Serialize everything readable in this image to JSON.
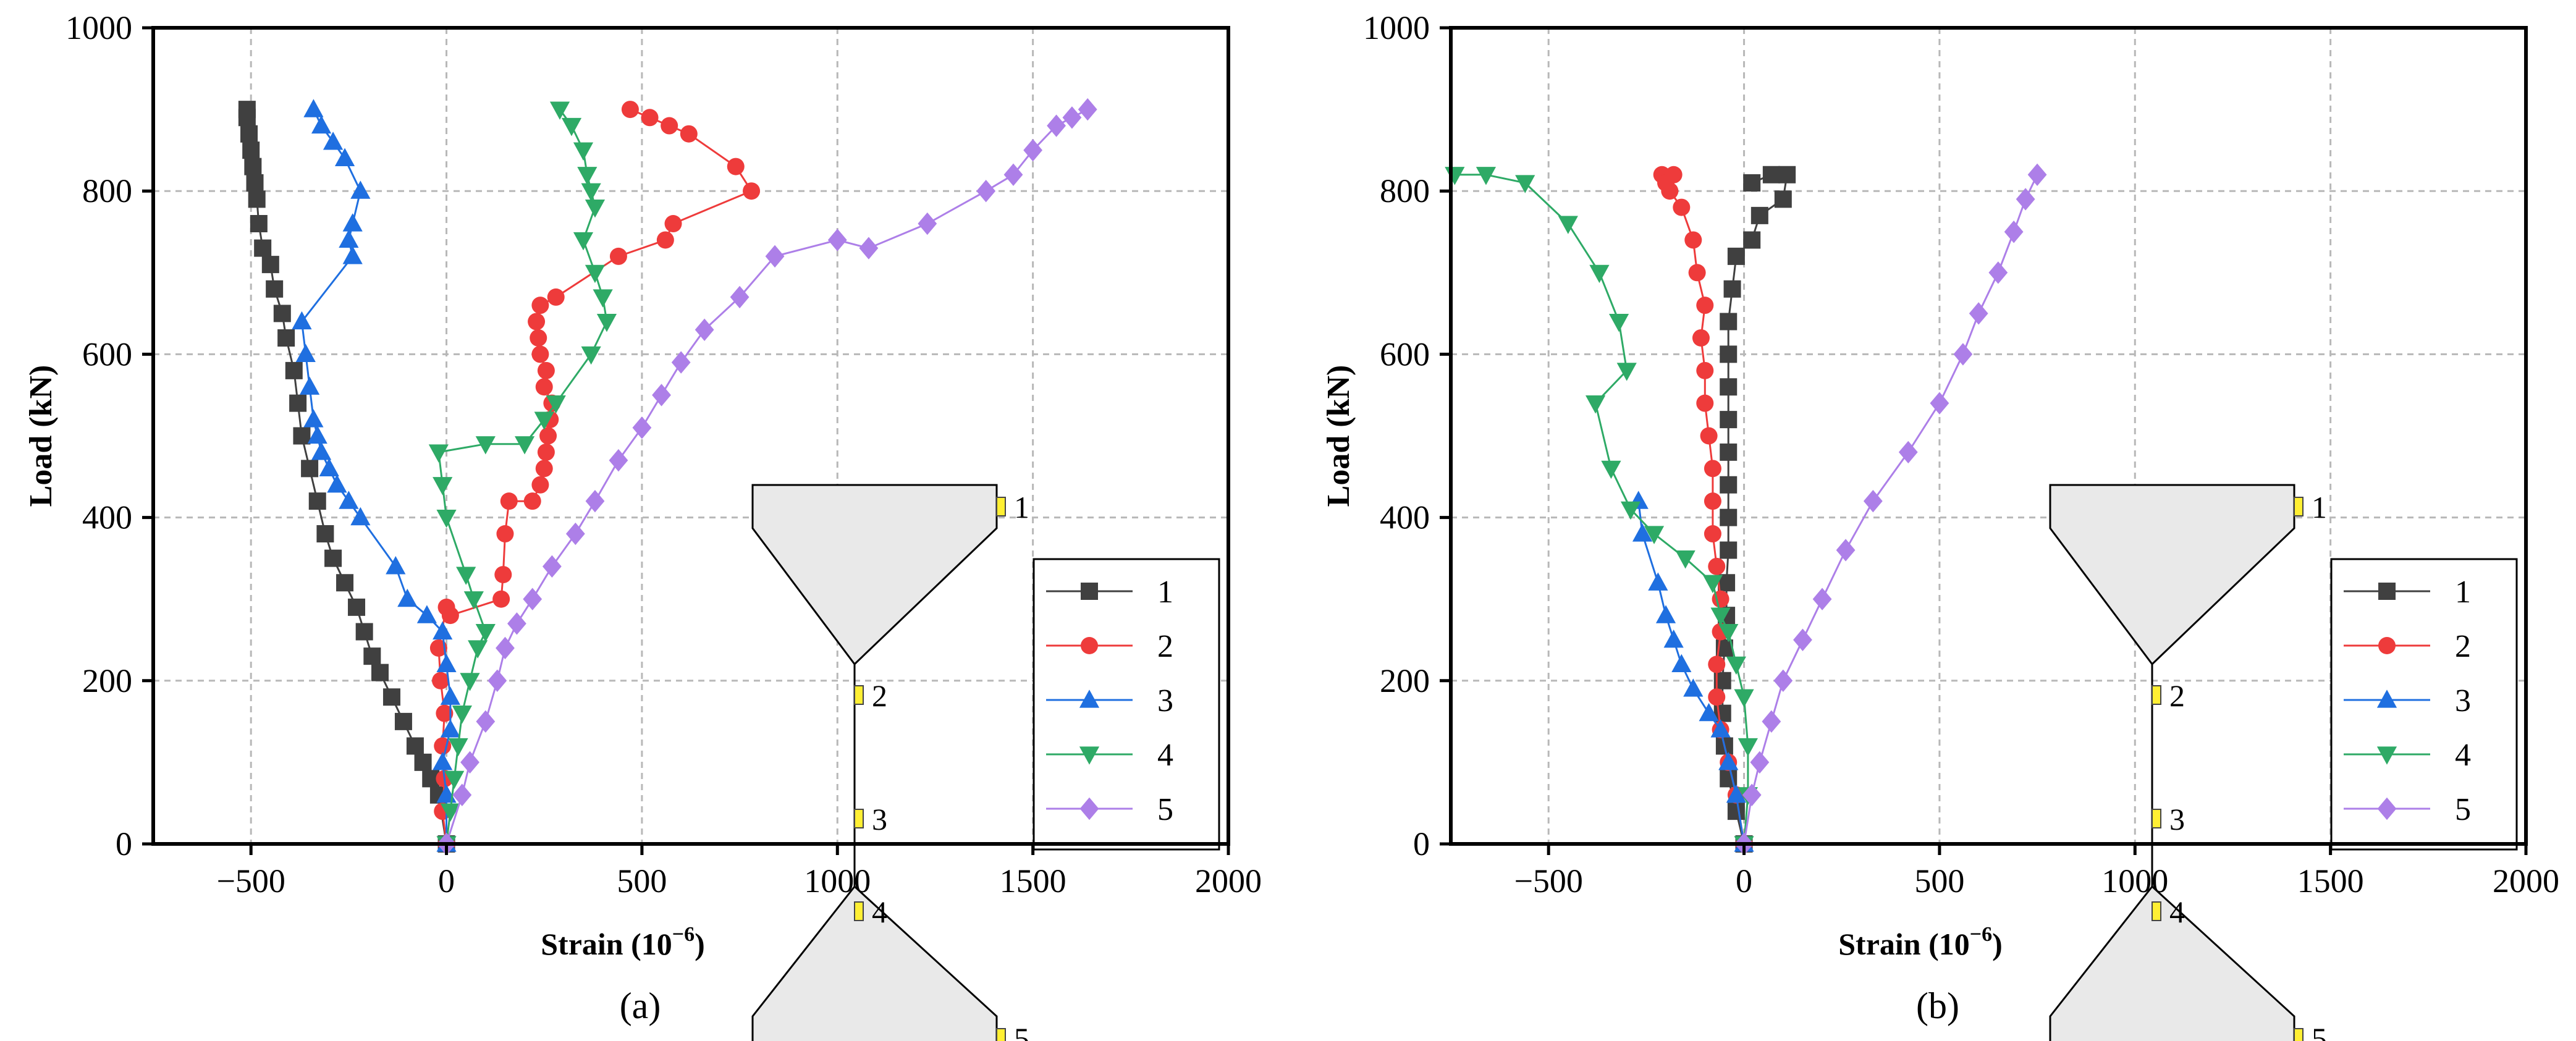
{
  "chart_data": [
    {
      "type": "scatter",
      "panel_label": "(a)",
      "xlabel_main": "Strain (10",
      "xlabel_exp": "−6",
      "xlabel_close": ")",
      "ylabel": "Load (kN)",
      "xlim": [
        -750,
        2000
      ],
      "ylim": [
        0,
        1000
      ],
      "xticks": [
        -500,
        0,
        500,
        1000,
        1500,
        2000
      ],
      "xtick_labels": [
        "−500",
        "0",
        "500",
        "1000",
        "1500",
        "2000"
      ],
      "yticks": [
        0,
        200,
        400,
        600,
        800,
        1000
      ],
      "ytick_labels": [
        "0",
        "200",
        "400",
        "600",
        "800",
        "1000"
      ],
      "grid": true,
      "legend_position": "bottom-right",
      "inset_labels": [
        "1",
        "2",
        "3",
        "4",
        "5"
      ],
      "series": [
        {
          "name": "1",
          "color": "#404040",
          "marker": "square",
          "points": [
            [
              0,
              0
            ],
            [
              -20,
              60
            ],
            [
              -40,
              80
            ],
            [
              -60,
              100
            ],
            [
              -80,
              120
            ],
            [
              -110,
              150
            ],
            [
              -140,
              180
            ],
            [
              -170,
              210
            ],
            [
              -190,
              230
            ],
            [
              -210,
              260
            ],
            [
              -230,
              290
            ],
            [
              -260,
              320
            ],
            [
              -290,
              350
            ],
            [
              -310,
              380
            ],
            [
              -330,
              420
            ],
            [
              -350,
              460
            ],
            [
              -370,
              500
            ],
            [
              -380,
              540
            ],
            [
              -390,
              580
            ],
            [
              -410,
              620
            ],
            [
              -420,
              650
            ],
            [
              -440,
              680
            ],
            [
              -450,
              710
            ],
            [
              -470,
              730
            ],
            [
              -480,
              760
            ],
            [
              -485,
              790
            ],
            [
              -490,
              810
            ],
            [
              -495,
              830
            ],
            [
              -500,
              850
            ],
            [
              -505,
              870
            ],
            [
              -510,
              890
            ],
            [
              -510,
              900
            ]
          ]
        },
        {
          "name": "2",
          "color": "#ee3b3b",
          "marker": "circle",
          "points": [
            [
              0,
              0
            ],
            [
              -10,
              40
            ],
            [
              -5,
              80
            ],
            [
              -10,
              120
            ],
            [
              -5,
              160
            ],
            [
              -15,
              200
            ],
            [
              -20,
              240
            ],
            [
              0,
              290
            ],
            [
              10,
              280
            ],
            [
              140,
              300
            ],
            [
              145,
              330
            ],
            [
              150,
              380
            ],
            [
              160,
              420
            ],
            [
              220,
              420
            ],
            [
              240,
              440
            ],
            [
              250,
              460
            ],
            [
              255,
              480
            ],
            [
              260,
              500
            ],
            [
              265,
              520
            ],
            [
              270,
              540
            ],
            [
              250,
              560
            ],
            [
              255,
              580
            ],
            [
              240,
              600
            ],
            [
              235,
              620
            ],
            [
              230,
              640
            ],
            [
              240,
              660
            ],
            [
              280,
              670
            ],
            [
              440,
              720
            ],
            [
              560,
              740
            ],
            [
              580,
              760
            ],
            [
              780,
              800
            ],
            [
              740,
              830
            ],
            [
              620,
              870
            ],
            [
              570,
              880
            ],
            [
              520,
              890
            ],
            [
              470,
              900
            ]
          ]
        },
        {
          "name": "3",
          "color": "#1f6fe0",
          "marker": "triangle-up",
          "points": [
            [
              0,
              0
            ],
            [
              0,
              60
            ],
            [
              -10,
              100
            ],
            [
              10,
              140
            ],
            [
              10,
              180
            ],
            [
              0,
              220
            ],
            [
              -10,
              260
            ],
            [
              -50,
              280
            ],
            [
              -100,
              300
            ],
            [
              -130,
              340
            ],
            [
              -220,
              400
            ],
            [
              -250,
              420
            ],
            [
              -280,
              440
            ],
            [
              -300,
              460
            ],
            [
              -320,
              480
            ],
            [
              -330,
              500
            ],
            [
              -340,
              520
            ],
            [
              -350,
              560
            ],
            [
              -360,
              600
            ],
            [
              -370,
              640
            ],
            [
              -240,
              720
            ],
            [
              -250,
              740
            ],
            [
              -240,
              760
            ],
            [
              -220,
              800
            ],
            [
              -260,
              840
            ],
            [
              -290,
              860
            ],
            [
              -320,
              880
            ],
            [
              -340,
              900
            ]
          ]
        },
        {
          "name": "4",
          "color": "#2eaa66",
          "marker": "triangle-down",
          "points": [
            [
              0,
              0
            ],
            [
              10,
              40
            ],
            [
              20,
              80
            ],
            [
              30,
              120
            ],
            [
              40,
              160
            ],
            [
              60,
              200
            ],
            [
              80,
              240
            ],
            [
              100,
              260
            ],
            [
              70,
              300
            ],
            [
              50,
              330
            ],
            [
              0,
              400
            ],
            [
              -10,
              440
            ],
            [
              -20,
              480
            ],
            [
              100,
              490
            ],
            [
              200,
              490
            ],
            [
              250,
              520
            ],
            [
              280,
              540
            ],
            [
              370,
              600
            ],
            [
              410,
              640
            ],
            [
              400,
              670
            ],
            [
              380,
              700
            ],
            [
              350,
              740
            ],
            [
              380,
              780
            ],
            [
              370,
              800
            ],
            [
              360,
              820
            ],
            [
              350,
              850
            ],
            [
              320,
              880
            ],
            [
              290,
              900
            ]
          ]
        },
        {
          "name": "5",
          "color": "#ad7fe8",
          "marker": "diamond",
          "points": [
            [
              0,
              0
            ],
            [
              40,
              60
            ],
            [
              60,
              100
            ],
            [
              100,
              150
            ],
            [
              130,
              200
            ],
            [
              150,
              240
            ],
            [
              180,
              270
            ],
            [
              220,
              300
            ],
            [
              270,
              340
            ],
            [
              330,
              380
            ],
            [
              380,
              420
            ],
            [
              440,
              470
            ],
            [
              500,
              510
            ],
            [
              550,
              550
            ],
            [
              600,
              590
            ],
            [
              660,
              630
            ],
            [
              750,
              670
            ],
            [
              840,
              720
            ],
            [
              1000,
              740
            ],
            [
              1080,
              730
            ],
            [
              1230,
              760
            ],
            [
              1380,
              800
            ],
            [
              1450,
              820
            ],
            [
              1500,
              850
            ],
            [
              1560,
              880
            ],
            [
              1600,
              890
            ],
            [
              1640,
              900
            ]
          ]
        }
      ]
    },
    {
      "type": "scatter",
      "panel_label": "(b)",
      "xlabel_main": "Strain (10",
      "xlabel_exp": "−6",
      "xlabel_close": ")",
      "ylabel": "Load (kN)",
      "xlim": [
        -750,
        2000
      ],
      "ylim": [
        0,
        1000
      ],
      "xticks": [
        -500,
        0,
        500,
        1000,
        1500,
        2000
      ],
      "xtick_labels": [
        "−500",
        "0",
        "500",
        "1000",
        "1500",
        "2000"
      ],
      "yticks": [
        0,
        200,
        400,
        600,
        800,
        1000
      ],
      "ytick_labels": [
        "0",
        "200",
        "400",
        "600",
        "800",
        "1000"
      ],
      "grid": true,
      "legend_position": "bottom-right",
      "inset_labels": [
        "1",
        "2",
        "3",
        "4",
        "5"
      ],
      "series": [
        {
          "name": "1",
          "color": "#404040",
          "marker": "square",
          "points": [
            [
              0,
              0
            ],
            [
              -20,
              40
            ],
            [
              -40,
              80
            ],
            [
              -50,
              120
            ],
            [
              -55,
              160
            ],
            [
              -55,
              200
            ],
            [
              -50,
              240
            ],
            [
              -45,
              280
            ],
            [
              -45,
              320
            ],
            [
              -40,
              360
            ],
            [
              -40,
              400
            ],
            [
              -40,
              440
            ],
            [
              -40,
              480
            ],
            [
              -40,
              520
            ],
            [
              -40,
              560
            ],
            [
              -40,
              600
            ],
            [
              -40,
              640
            ],
            [
              -30,
              680
            ],
            [
              -20,
              720
            ],
            [
              20,
              740
            ],
            [
              40,
              770
            ],
            [
              100,
              790
            ],
            [
              110,
              820
            ],
            [
              70,
              820
            ],
            [
              20,
              810
            ]
          ]
        },
        {
          "name": "2",
          "color": "#ee3b3b",
          "marker": "circle",
          "points": [
            [
              0,
              0
            ],
            [
              -20,
              60
            ],
            [
              -40,
              100
            ],
            [
              -60,
              140
            ],
            [
              -70,
              180
            ],
            [
              -70,
              220
            ],
            [
              -60,
              260
            ],
            [
              -60,
              300
            ],
            [
              -70,
              340
            ],
            [
              -80,
              380
            ],
            [
              -80,
              420
            ],
            [
              -80,
              460
            ],
            [
              -90,
              500
            ],
            [
              -100,
              540
            ],
            [
              -100,
              580
            ],
            [
              -110,
              620
            ],
            [
              -100,
              660
            ],
            [
              -120,
              700
            ],
            [
              -130,
              740
            ],
            [
              -160,
              780
            ],
            [
              -190,
              800
            ],
            [
              -210,
              820
            ],
            [
              -180,
              820
            ],
            [
              -200,
              810
            ]
          ]
        },
        {
          "name": "3",
          "color": "#1f6fe0",
          "marker": "triangle-up",
          "points": [
            [
              0,
              0
            ],
            [
              -20,
              60
            ],
            [
              -40,
              100
            ],
            [
              -60,
              140
            ],
            [
              -90,
              160
            ],
            [
              -130,
              190
            ],
            [
              -160,
              220
            ],
            [
              -180,
              250
            ],
            [
              -200,
              280
            ],
            [
              -220,
              320
            ],
            [
              -260,
              380
            ],
            [
              -270,
              420
            ]
          ]
        },
        {
          "name": "4",
          "color": "#2eaa66",
          "marker": "triangle-down",
          "points": [
            [
              0,
              0
            ],
            [
              10,
              60
            ],
            [
              10,
              120
            ],
            [
              0,
              180
            ],
            [
              -20,
              220
            ],
            [
              -40,
              260
            ],
            [
              -60,
              280
            ],
            [
              -80,
              320
            ],
            [
              -150,
              350
            ],
            [
              -230,
              380
            ],
            [
              -290,
              410
            ],
            [
              -340,
              460
            ],
            [
              -380,
              540
            ],
            [
              -300,
              580
            ],
            [
              -320,
              640
            ],
            [
              -370,
              700
            ],
            [
              -450,
              760
            ],
            [
              -560,
              810
            ],
            [
              -660,
              820
            ],
            [
              -740,
              820
            ]
          ]
        },
        {
          "name": "5",
          "color": "#ad7fe8",
          "marker": "diamond",
          "points": [
            [
              0,
              0
            ],
            [
              20,
              60
            ],
            [
              40,
              100
            ],
            [
              70,
              150
            ],
            [
              100,
              200
            ],
            [
              150,
              250
            ],
            [
              200,
              300
            ],
            [
              260,
              360
            ],
            [
              330,
              420
            ],
            [
              420,
              480
            ],
            [
              500,
              540
            ],
            [
              560,
              600
            ],
            [
              600,
              650
            ],
            [
              650,
              700
            ],
            [
              690,
              750
            ],
            [
              720,
              790
            ],
            [
              750,
              820
            ]
          ]
        }
      ]
    }
  ]
}
